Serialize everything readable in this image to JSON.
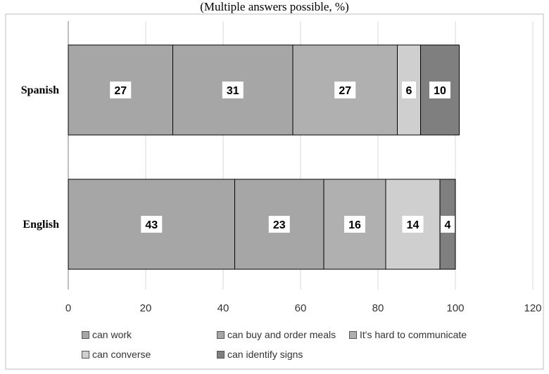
{
  "chart_data": {
    "type": "bar",
    "orientation": "horizontal",
    "stacked": true,
    "title": "(Multiple answers possible, %)",
    "categories": [
      "Spanish",
      "English"
    ],
    "series": [
      {
        "name": "can work",
        "values": [
          27,
          43
        ],
        "color": "#a6a6a6"
      },
      {
        "name": "can buy and order meals",
        "values": [
          31,
          23
        ],
        "color": "#a6a6a6"
      },
      {
        "name": "It's hard to communicate",
        "values": [
          27,
          16
        ],
        "color": "#b0b0b0"
      },
      {
        "name": "can converse",
        "values": [
          6,
          14
        ],
        "color": "#cfcfcf"
      },
      {
        "name": "can identify signs",
        "values": [
          10,
          4
        ],
        "color": "#7f7f7f"
      }
    ],
    "xlim": [
      0,
      120
    ],
    "xticks": [
      0,
      20,
      40,
      60,
      80,
      100,
      120
    ],
    "grid": true,
    "legend_position": "bottom"
  }
}
